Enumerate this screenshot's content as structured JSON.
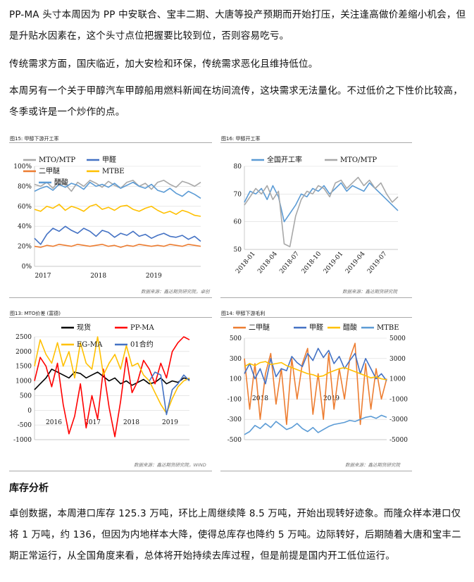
{
  "paragraphs": {
    "p1": "PP-MA 头寸本周因为 PP 中安联合、宝丰二期、大唐等投产预期而开始打压，关注逢高做价差缩小机会，但是升贴水因素在，这个头寸点位把握要比较到位，否则容易吃亏。",
    "p2": "传统需求方面，国庆临近，加大安检和环保，传统需求恶化且维持低位。",
    "p3": "本周另有一个关于甲醇汽车甲醇船用燃料新闻在坊间流传，这块需求无法量化。不过低价之下性价比较高，冬季或许是一个炒作的点。",
    "section_title": "库存分析",
    "p4": "卓创数据，本周港口库存 125.3 万吨，环比上周继续降 8.5 万吨，开始出现转好迹象。而隆众样本港口仅将 1 万吨，约 136，但因为内地样本大降，使得总库存也降约 5 万吨。边际转好，后期随着大唐和宝丰二期正常运行，从全国角度来看，总体将开始持续去库过程，但是前提是国内开工低位运行。"
  },
  "figures": {
    "cap15": "图15: 甲醇下游开工率",
    "cap16": "图16: 甲醇开工率",
    "cap13": "图13: MTO价差 (富德)",
    "cap14": "图14: 甲醇下游毛利",
    "src15": "数据来源：鑫达期货研究院，卓创",
    "src16": "数据来源：鑫达期货研究院",
    "src13": "数据来源：鑫达期货研究院，WIND",
    "src14": "数据来源：鑫达期货研究院"
  },
  "chart_data": [
    {
      "type": "line",
      "id": "fig15",
      "title": "",
      "ylim": [
        0,
        100
      ],
      "y_ticks": [
        "0%",
        "20%",
        "40%",
        "60%",
        "80%",
        "100%"
      ],
      "x_ticks": [
        "2017",
        "2018",
        "2019"
      ],
      "grid": true,
      "legend_position": "top-left",
      "series": [
        {
          "name": "MTO/MTP",
          "color": "#a8a8a8",
          "values": [
            82,
            80,
            84,
            78,
            86,
            82,
            75,
            84,
            80,
            86,
            83,
            79,
            85,
            81,
            78,
            84,
            86,
            80,
            83,
            77,
            84,
            86,
            82,
            79,
            85,
            83,
            80,
            84
          ]
        },
        {
          "name": "甲醛",
          "color": "#4472c4",
          "values": [
            28,
            22,
            32,
            38,
            35,
            40,
            36,
            33,
            38,
            35,
            30,
            36,
            34,
            29,
            33,
            31,
            35,
            30,
            32,
            28,
            31,
            33,
            30,
            29,
            31,
            27,
            30,
            25
          ]
        },
        {
          "name": "二甲醚",
          "color": "#ed7d31",
          "values": [
            20,
            19,
            21,
            20,
            22,
            21,
            20,
            22,
            21,
            20,
            21,
            22,
            20,
            21,
            19,
            21,
            20,
            22,
            21,
            20,
            21,
            20,
            22,
            21,
            20,
            22,
            21,
            20
          ]
        },
        {
          "name": "MTBE",
          "color": "#ffc000",
          "values": [
            57,
            55,
            60,
            58,
            62,
            56,
            60,
            58,
            55,
            60,
            62,
            57,
            59,
            56,
            60,
            61,
            57,
            55,
            58,
            60,
            56,
            53,
            55,
            52,
            56,
            54,
            51,
            50
          ]
        },
        {
          "name": "醋酸",
          "color": "#5b9bd5",
          "values": [
            75,
            78,
            80,
            76,
            82,
            79,
            83,
            81,
            77,
            84,
            80,
            82,
            79,
            83,
            78,
            81,
            84,
            80,
            78,
            82,
            76,
            74,
            78,
            73,
            70,
            75,
            72,
            68
          ]
        }
      ]
    },
    {
      "type": "line",
      "id": "fig16",
      "title": "",
      "ylim": [
        50,
        80
      ],
      "y_ticks": [
        "50",
        "60",
        "70",
        "80"
      ],
      "x_ticks": [
        "2018-01",
        "2018-04",
        "2018-07",
        "2018-10",
        "2019-01",
        "2019-04",
        "2019-07"
      ],
      "grid": true,
      "legend_position": "top",
      "series": [
        {
          "name": "全国开工率",
          "color": "#5b9bd5",
          "values": [
            67,
            71,
            70,
            72,
            68,
            73,
            69,
            60,
            63,
            66,
            70,
            69,
            72,
            71,
            73,
            70,
            72,
            74,
            71,
            73,
            72,
            71,
            74,
            72,
            70,
            68,
            66,
            64
          ]
        },
        {
          "name": "MTO/MTP",
          "color": "#a8a8a8",
          "values": [
            66,
            69,
            72,
            70,
            73,
            68,
            71,
            52,
            51,
            62,
            68,
            71,
            70,
            73,
            72,
            69,
            74,
            75,
            72,
            74,
            76,
            73,
            75,
            72,
            74,
            70,
            67,
            69
          ]
        }
      ]
    },
    {
      "type": "line",
      "id": "fig13",
      "title": "",
      "ylim": [
        -1000,
        2500
      ],
      "y_ticks": [
        "-1000",
        "-500",
        "0",
        "500",
        "1000",
        "1500",
        "2000",
        "2500"
      ],
      "x_ticks": [
        "2016",
        "2017",
        "2018",
        "2019"
      ],
      "grid": true,
      "legend_position": "top",
      "series": [
        {
          "name": "现货",
          "color": "#000000",
          "values": [
            700,
            900,
            1100,
            1400,
            1300,
            1200,
            1100,
            1300,
            1250,
            1100,
            1200,
            1300,
            1150,
            1000,
            1100,
            900,
            1000,
            850,
            950,
            1050,
            900,
            950,
            1100,
            900,
            1000,
            950,
            1100,
            1050
          ]
        },
        {
          "name": "PP-MA",
          "color": "#ff0000",
          "values": [
            1000,
            1800,
            1500,
            800,
            1600,
            200,
            -800,
            -200,
            900,
            -600,
            500,
            -300,
            1400,
            100,
            -900,
            300,
            1800,
            600,
            1000,
            1700,
            1400,
            900,
            1600,
            1100,
            2000,
            2300,
            2500,
            2400
          ]
        },
        {
          "name": "EG-MA",
          "color": "#ffc000",
          "values": [
            1500,
            2400,
            1900,
            1600,
            2300,
            1500,
            2000,
            1100,
            2300,
            1600,
            1400,
            2500,
            1200,
            1600,
            1900,
            1400,
            2200,
            1500,
            1600,
            1200,
            1000,
            600,
            200,
            -100,
            400,
            800,
            1000,
            1100
          ]
        },
        {
          "name": "01合约",
          "color": "#4472c4",
          "values": [
            null,
            null,
            null,
            null,
            null,
            null,
            null,
            null,
            null,
            null,
            null,
            null,
            null,
            null,
            null,
            null,
            null,
            null,
            null,
            null,
            1000,
            1300,
            1200,
            -150,
            700,
            900,
            1200,
            1000
          ]
        }
      ]
    },
    {
      "type": "line",
      "id": "fig14",
      "title": "",
      "ylim": [
        -500,
        500
      ],
      "ylim_right": [
        -5000,
        5000
      ],
      "y_ticks": [
        "-500",
        "-300",
        "-100",
        "100",
        "300",
        "500"
      ],
      "y_ticks_right": [
        "-5000",
        "-3000",
        "-1000",
        "1000",
        "3000",
        "5000"
      ],
      "x_ticks": [
        "2018",
        "2019"
      ],
      "grid": true,
      "legend_position": "top",
      "series": [
        {
          "name": "二甲醚",
          "color": "#ed7d31",
          "values": [
            300,
            -200,
            250,
            -300,
            150,
            350,
            -150,
            200,
            -350,
            300,
            -100,
            250,
            400,
            -250,
            150,
            -300,
            350,
            -200,
            200,
            -100,
            300,
            450,
            -350,
            250,
            -200,
            200,
            -100,
            100
          ]
        },
        {
          "name": "甲醛",
          "color": "#4472c4",
          "values": [
            150,
            250,
            100,
            200,
            50,
            300,
            120,
            200,
            180,
            320,
            260,
            220,
            350,
            280,
            400,
            310,
            380,
            250,
            320,
            200,
            280,
            350,
            150,
            300,
            200,
            100,
            150,
            80
          ]
        },
        {
          "name": "醋酸",
          "color": "#ffc000",
          "values": [
            220,
            250,
            230,
            260,
            270,
            240,
            250,
            260,
            230,
            210,
            190,
            170,
            150,
            140,
            120,
            130,
            160,
            180,
            200,
            210,
            190,
            170,
            150,
            130,
            110,
            120,
            100,
            90
          ]
        },
        {
          "name": "MTBE",
          "color": "#5b9bd5",
          "values": [
            -4500,
            -4200,
            -3600,
            -3900,
            -3400,
            -3800,
            -3200,
            -3600,
            -4000,
            -3800,
            -3400,
            -3900,
            -4200,
            -3800,
            -4300,
            -4000,
            -3700,
            -3500,
            -3400,
            -3300,
            -3100,
            -3200,
            -3000,
            -2800,
            -2700,
            -2900,
            -2600,
            -2800
          ]
        }
      ]
    }
  ]
}
